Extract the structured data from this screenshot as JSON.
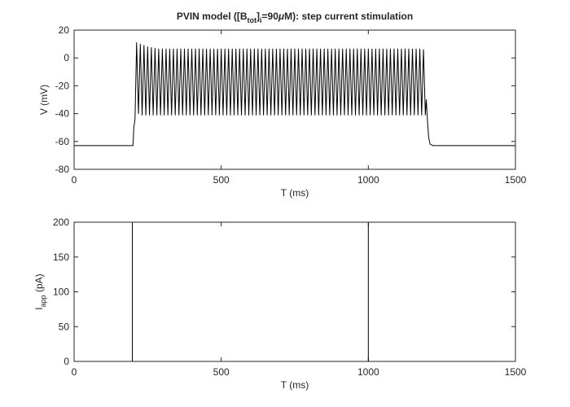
{
  "chart_data": [
    {
      "type": "line",
      "title": [
        "PVIN model ([B",
        "tot",
        "]",
        "i",
        "=90",
        "μ",
        "M): step current stimulation"
      ],
      "xlabel": "T (ms)",
      "ylabel": "V (mV)",
      "x": [
        0,
        200,
        203,
        207,
        212.5,
        218.75,
        225,
        231.25,
        237.5,
        243.75,
        250,
        256.25,
        262.5,
        268.75,
        275,
        281.25,
        287.5,
        293.75,
        300,
        306.25,
        312.5,
        318.75,
        325,
        331.25,
        337.5,
        343.75,
        350,
        356.25,
        362.5,
        368.75,
        375,
        381.25,
        387.5,
        393.75,
        400,
        406.25,
        412.5,
        418.75,
        425,
        431.25,
        437.5,
        443.75,
        450,
        456.25,
        462.5,
        468.75,
        475,
        481.25,
        487.5,
        493.75,
        500,
        506.25,
        512.5,
        518.75,
        525,
        531.25,
        537.5,
        543.75,
        550,
        556.25,
        562.5,
        568.75,
        575,
        581.25,
        587.5,
        593.75,
        600,
        606.25,
        612.5,
        618.75,
        625,
        631.25,
        637.5,
        643.75,
        650,
        656.25,
        662.5,
        668.75,
        675,
        681.25,
        687.5,
        693.75,
        700,
        706.25,
        712.5,
        718.75,
        725,
        731.25,
        737.5,
        743.75,
        750,
        756.25,
        762.5,
        768.75,
        775,
        781.25,
        787.5,
        793.75,
        800,
        806.25,
        812.5,
        818.75,
        825,
        831.25,
        837.5,
        843.75,
        850,
        856.25,
        862.5,
        868.75,
        875,
        881.25,
        887.5,
        893.75,
        900,
        906.25,
        912.5,
        918.75,
        925,
        931.25,
        937.5,
        943.75,
        950,
        956.25,
        962.5,
        968.75,
        975,
        981.25,
        987.5,
        993.75,
        1000,
        1006.25,
        1012.5,
        1018.75,
        1025,
        1031.25,
        1037.5,
        1043.75,
        1050,
        1056.25,
        1062.5,
        1068.75,
        1075,
        1081.25,
        1087.5,
        1093.75,
        1100,
        1106.25,
        1112.5,
        1118.75,
        1125,
        1131.25,
        1137.5,
        1143.75,
        1150,
        1156.25,
        1162.5,
        1168.75,
        1175,
        1181.25,
        1187.5,
        1193.75,
        1197,
        1201,
        1205,
        1210,
        1220,
        1500
      ],
      "series": [
        {
          "color": "#000000",
          "values": [
            -63,
            -63,
            -50,
            -44,
            11,
            -40,
            10,
            -41,
            9,
            -41,
            8,
            -41,
            7.5,
            -41,
            7,
            -41,
            6.5,
            -41,
            6.5,
            -41,
            6.5,
            -41,
            6.5,
            -41,
            6.5,
            -41,
            6.5,
            -41,
            6.5,
            -41,
            6.5,
            -41,
            6.5,
            -41,
            6.5,
            -41,
            6.5,
            -41,
            6.5,
            -41,
            6.5,
            -41,
            6.5,
            -41,
            6.5,
            -41,
            6.5,
            -41,
            6.5,
            -41,
            6.5,
            -41,
            6.5,
            -41,
            6.5,
            -41,
            6.5,
            -41,
            6.5,
            -41,
            6.5,
            -41,
            6.5,
            -41,
            6.5,
            -41,
            6.5,
            -41,
            6.5,
            -41,
            6.5,
            -41,
            6.5,
            -41,
            6.5,
            -41,
            6.5,
            -41,
            6.5,
            -41,
            6.5,
            -41,
            6.5,
            -41,
            6.5,
            -41,
            6.5,
            -41,
            6.5,
            -41,
            6.5,
            -41,
            6.5,
            -41,
            6.5,
            -41,
            6.5,
            -41,
            6.5,
            -41,
            6.5,
            -41,
            6.5,
            -41,
            6.5,
            -41,
            6.5,
            -41,
            6.5,
            -41,
            6.5,
            -41,
            6.5,
            -41,
            6.5,
            -41,
            6.5,
            -41,
            6.5,
            -41,
            6.5,
            -41,
            6.5,
            -41,
            6.5,
            -41,
            6.5,
            -41,
            6.5,
            -41,
            6.5,
            -41,
            6.5,
            -41,
            6.5,
            -41,
            6.5,
            -41,
            6.5,
            -41,
            6.5,
            -41,
            6.5,
            -41,
            6.5,
            -41,
            6.5,
            -41,
            6.5,
            -41,
            6.5,
            -41,
            6.5,
            -41,
            6.5,
            -41,
            6.5,
            -41,
            6.5,
            -41,
            6,
            -41,
            -30,
            -45,
            -57,
            -62,
            -63,
            -63
          ]
        }
      ],
      "xlim": [
        0,
        1500
      ],
      "ylim": [
        -80,
        20
      ],
      "xticks": [
        0,
        500,
        1000,
        1500
      ],
      "yticks": [
        -80,
        -60,
        -40,
        -20,
        0,
        20
      ]
    },
    {
      "type": "line",
      "xlabel": "T (ms)",
      "ylabel": [
        "I",
        "app",
        " (pA)"
      ],
      "x": [
        0,
        198,
        198,
        1000,
        1000,
        1500
      ],
      "series": [
        {
          "color": "#000000",
          "values": [
            0,
            0,
            200,
            200,
            0,
            0
          ]
        }
      ],
      "xlim": [
        0,
        1500
      ],
      "ylim": [
        0,
        200
      ],
      "xticks": [
        0,
        500,
        1000,
        1500
      ],
      "yticks": [
        0,
        50,
        100,
        150,
        200
      ]
    }
  ]
}
